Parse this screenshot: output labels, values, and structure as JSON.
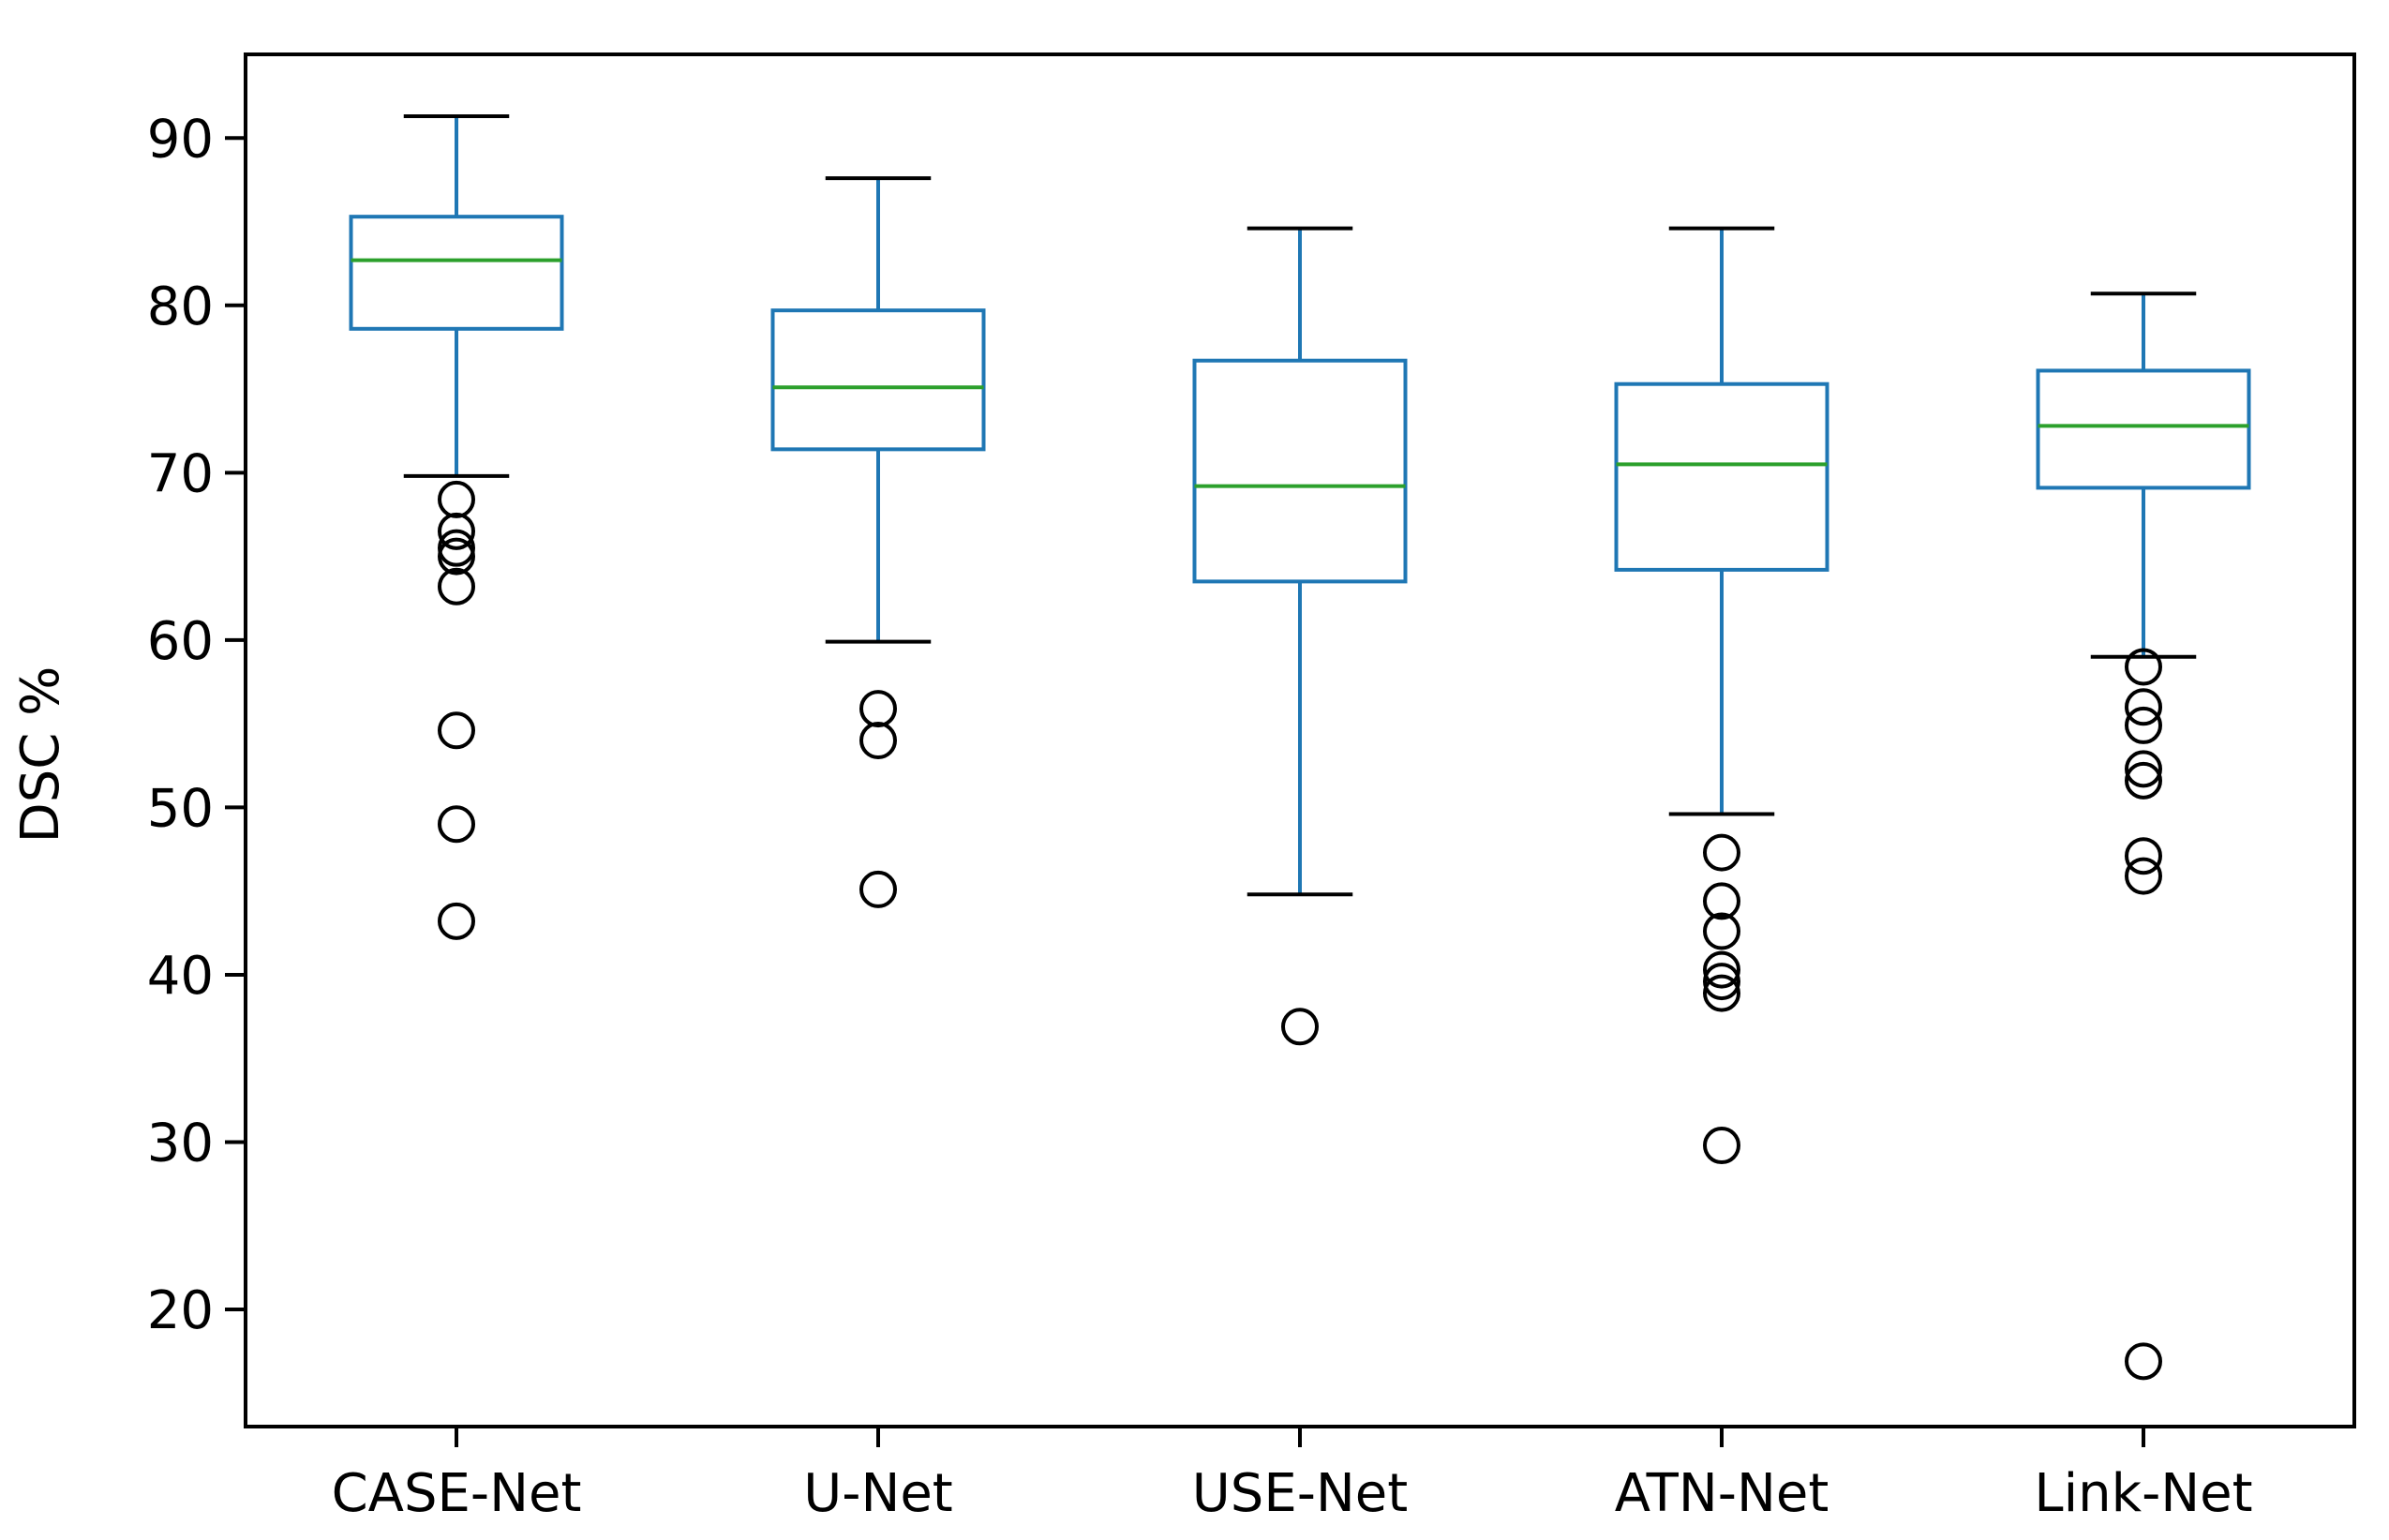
{
  "chart_data": {
    "type": "box",
    "ylabel": "DSC %",
    "xlabel": "",
    "ylim": [
      13,
      95
    ],
    "yticks": [
      20,
      30,
      40,
      50,
      60,
      70,
      80,
      90
    ],
    "grid": false,
    "colors": {
      "box": "#1f77b4",
      "median": "#2ca02c",
      "whisker": "#1f77b4",
      "cap": "#000000",
      "flier": "#000000"
    },
    "categories": [
      "CASE-Net",
      "U-Net",
      "USE-Net",
      "ATN-Net",
      "Link-Net"
    ],
    "boxes": [
      {
        "name": "CASE-Net",
        "whislo": 69.8,
        "q1": 78.6,
        "med": 82.7,
        "q3": 85.3,
        "whishi": 91.3,
        "fliers": [
          68.4,
          66.5,
          65.5,
          65.0,
          63.2,
          54.6,
          49.0,
          43.2
        ]
      },
      {
        "name": "U-Net",
        "whislo": 59.9,
        "q1": 71.4,
        "med": 75.1,
        "q3": 79.7,
        "whishi": 87.6,
        "fliers": [
          55.9,
          54.0,
          45.1
        ]
      },
      {
        "name": "USE-Net",
        "whislo": 44.8,
        "q1": 63.5,
        "med": 69.2,
        "q3": 76.7,
        "whishi": 84.6,
        "fliers": [
          36.9
        ]
      },
      {
        "name": "ATN-Net",
        "whislo": 49.6,
        "q1": 64.2,
        "med": 70.5,
        "q3": 75.3,
        "whishi": 84.6,
        "fliers": [
          47.3,
          44.4,
          42.6,
          40.3,
          39.6,
          38.9,
          29.8
        ]
      },
      {
        "name": "Link-Net",
        "whislo": 59.0,
        "q1": 69.1,
        "med": 72.8,
        "q3": 76.1,
        "whishi": 80.7,
        "fliers": [
          58.4,
          56.0,
          54.9,
          52.3,
          51.6,
          47.1,
          45.9,
          16.9
        ]
      }
    ]
  }
}
